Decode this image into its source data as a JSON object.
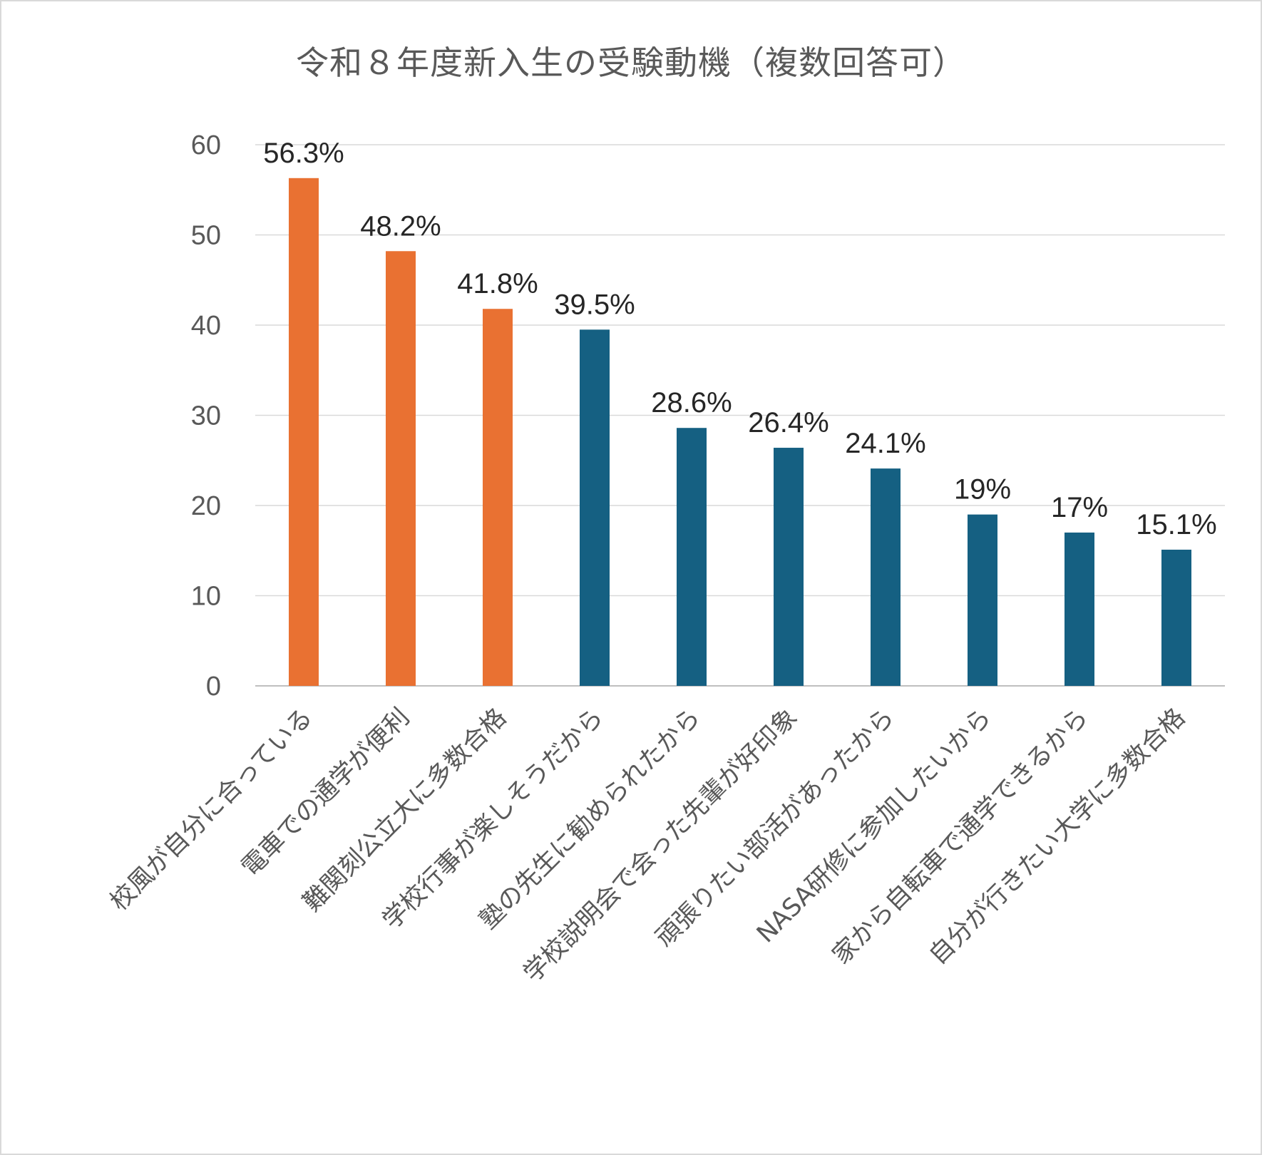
{
  "chart_data": {
    "type": "bar",
    "title": "令和８年度新入生の受験動機（複数回答可）",
    "xlabel": "",
    "ylabel": "",
    "ylim": [
      0,
      60
    ],
    "yticks": [
      0,
      10,
      20,
      30,
      40,
      50,
      60
    ],
    "grid": true,
    "legend": "none",
    "categories": [
      "校風が自分に合っている",
      "電車での通学が便利",
      "難関刻公立大に多数合格",
      "学校行事が楽しそうだから",
      "塾の先生に勧められたから",
      "学校説明会で会った先輩が好印象",
      "頑張りたい部活があったから",
      "NASA研修に参加したいから",
      "家から自転車で通学できるから",
      "自分が行きたい大学に多数合格"
    ],
    "values": [
      56.3,
      48.2,
      41.8,
      39.5,
      28.6,
      26.4,
      24.1,
      19,
      17,
      15.1
    ],
    "data_labels": [
      "56.3%",
      "48.2%",
      "41.8%",
      "39.5%",
      "28.6%",
      "26.4%",
      "24.1%",
      "19%",
      "17%",
      "15.1%"
    ],
    "bar_colors": [
      "#E97132",
      "#E97132",
      "#E97132",
      "#156082",
      "#156082",
      "#156082",
      "#156082",
      "#156082",
      "#156082",
      "#156082"
    ]
  }
}
